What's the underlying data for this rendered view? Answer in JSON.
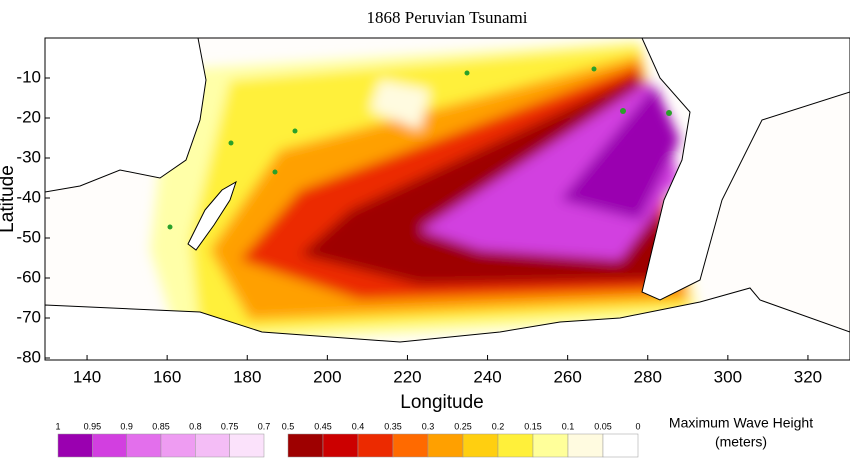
{
  "chart_data": {
    "type": "map",
    "title": "1868 Peruvian Tsunami",
    "xlabel": "Longitude",
    "ylabel": "Latitude",
    "xlim": [
      129.5,
      330.5
    ],
    "ylim": [
      -80.5,
      0
    ],
    "xticks": [
      140,
      160,
      180,
      200,
      220,
      240,
      260,
      280,
      300,
      320
    ],
    "yticks": [
      -10,
      -20,
      -30,
      -40,
      -50,
      -60,
      -70,
      -80
    ],
    "colorbar_title": [
      "Maximum Wave Height",
      "(meters)"
    ],
    "colorbars": [
      {
        "ticks": [
          1,
          0.95,
          0.9,
          0.85,
          0.8,
          0.75,
          0.7
        ],
        "colors": [
          "#9a00b0",
          "#d23fe0",
          "#e36fec",
          "#ee9cf2",
          "#f4bdf6",
          "#fbe2fb"
        ]
      },
      {
        "ticks": [
          0.5,
          0.45,
          0.4,
          0.35,
          0.3,
          0.25,
          0.2,
          0.15,
          0.1,
          0.05,
          0
        ],
        "colors": [
          "#9e0000",
          "#cc0000",
          "#ec2a00",
          "#ff6a00",
          "#ffa000",
          "#ffcf10",
          "#fff03a",
          "#ffff9a",
          "#fffbe0",
          "#ffffff"
        ]
      }
    ]
  }
}
